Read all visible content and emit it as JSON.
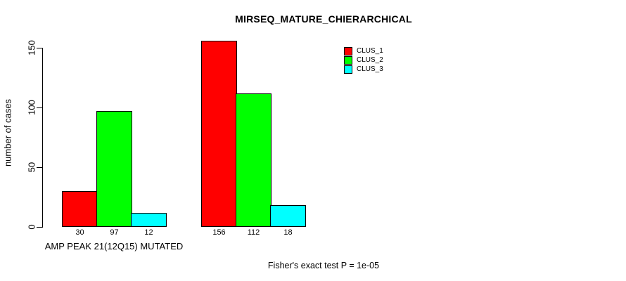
{
  "chart_data": {
    "type": "bar",
    "title": "MIRSEQ_MATURE_CHIERARCHICAL",
    "ylabel": "number of cases",
    "xlabel": "",
    "yticks": [
      0,
      50,
      100,
      150
    ],
    "ylim": [
      0,
      160
    ],
    "grid": false,
    "legend_position": "top-right",
    "categories": [
      "AMP PEAK 21(12Q15) MUTATED",
      ""
    ],
    "series": [
      {
        "name": "CLUS_1",
        "color": "#ff0000",
        "values": [
          30,
          156
        ]
      },
      {
        "name": "CLUS_2",
        "color": "#00ff00",
        "values": [
          97,
          112
        ]
      },
      {
        "name": "CLUS_3",
        "color": "#00ffff",
        "values": [
          12,
          18
        ]
      }
    ],
    "bar_value_labels": [
      [
        30,
        97,
        12
      ],
      [
        156,
        112,
        18
      ]
    ],
    "footnote": "Fisher's exact test P = 1e-05",
    "axis_color": "#000000",
    "background_color": "#ffffff"
  }
}
